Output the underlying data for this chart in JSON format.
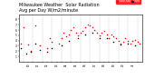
{
  "title": "Milwaukee Weather  Solar Radiation",
  "subtitle": "Avg per Day W/m2/minute",
  "title_fontsize": 3.5,
  "bg_color": "#ffffff",
  "plot_bg_color": "#ffffff",
  "grid_color": "#bbbbbb",
  "x_min": 1,
  "x_max": 53,
  "y_min": 0,
  "y_max": 9,
  "y_ticks": [
    1,
    2,
    3,
    4,
    5,
    6,
    7,
    8
  ],
  "y_tick_labels": [
    "1",
    "2",
    "3",
    "4",
    "5",
    "6",
    "7",
    "8"
  ],
  "x_tick_positions": [
    3,
    5,
    7,
    9,
    11,
    13,
    15,
    17,
    19,
    21,
    23,
    25,
    27,
    29,
    31,
    33,
    35,
    37,
    39,
    41,
    43,
    45,
    47,
    49,
    51
  ],
  "x_tick_labels": [
    "",
    "10",
    "",
    "11",
    "",
    "12",
    "",
    "13",
    "",
    "14",
    "",
    "15",
    "",
    "16",
    "",
    "17",
    "",
    "18",
    "",
    "19",
    "",
    "20",
    "",
    "21",
    ""
  ],
  "vgrid_positions": [
    3,
    7,
    11,
    15,
    19,
    23,
    27,
    31,
    35,
    39,
    43,
    47,
    51
  ],
  "legend_label_red": "Solar Rad",
  "legend_label_black": "Trend",
  "red_data_x": [
    2,
    3,
    5,
    6,
    8,
    10,
    13,
    14,
    15,
    18,
    19,
    20,
    21,
    22,
    23,
    24,
    25,
    26,
    27,
    28,
    29,
    30,
    31,
    32,
    33,
    34,
    35,
    36,
    37,
    38,
    39,
    40,
    41,
    42,
    43,
    44,
    45,
    46,
    47,
    48,
    49,
    50,
    51,
    52
  ],
  "red_data_y": [
    3.5,
    6.5,
    3.2,
    2.0,
    6.8,
    3.0,
    2.5,
    4.5,
    3.8,
    3.5,
    4.5,
    5.5,
    4.8,
    5.2,
    6.0,
    6.5,
    5.5,
    5.0,
    5.5,
    5.8,
    6.5,
    7.0,
    6.8,
    6.5,
    6.0,
    5.5,
    5.0,
    5.5,
    5.8,
    5.2,
    4.5,
    5.2,
    4.8,
    4.5,
    4.0,
    3.5,
    3.8,
    4.5,
    4.0,
    3.5,
    4.0,
    4.2,
    3.8,
    3.5
  ],
  "black_data_x": [
    2,
    4,
    6,
    8,
    10,
    13,
    15,
    19,
    22,
    26,
    29,
    32,
    35,
    38,
    41,
    44,
    47,
    50
  ],
  "black_data_y": [
    2.5,
    1.5,
    1.8,
    3.5,
    2.2,
    1.8,
    2.5,
    3.0,
    4.0,
    4.5,
    5.2,
    5.5,
    4.5,
    4.5,
    3.8,
    3.2,
    3.5,
    3.0
  ],
  "red_color": "#ff0000",
  "black_color": "#000000",
  "marker_size": 1.2,
  "legend_box_color": "#ff0000"
}
